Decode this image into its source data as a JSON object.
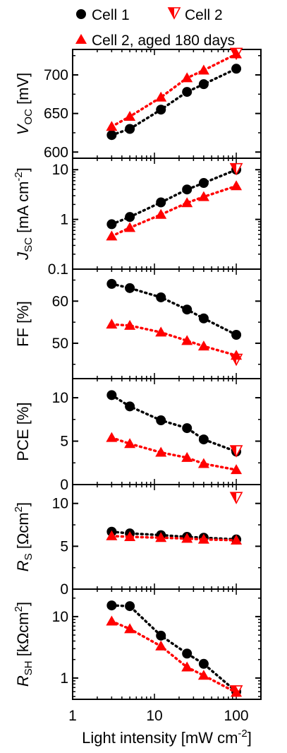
{
  "chart_data": {
    "type": "scatter",
    "x_scale": "log",
    "xlim": [
      1,
      200
    ],
    "xlabel": "Light intensity [mW cm",
    "xlabel_sup": "-2",
    "xlabel_tail": "]",
    "x_ticks": [
      1,
      10,
      100
    ],
    "x_tick_labels": [
      "1",
      "10",
      "100"
    ],
    "legend": [
      {
        "name": "Cell 1",
        "marker": "circle",
        "color": "#000000"
      },
      {
        "name": "Cell 2",
        "marker": "triangle-down-open",
        "color": "#ff0000"
      },
      {
        "name": "Cell 2, aged 180 days",
        "marker": "triangle-up",
        "color": "#ff0000"
      }
    ],
    "panels": [
      {
        "id": "voc",
        "ylabel_main": "V",
        "ylabel_sub": "OC",
        "ylabel_tail": " [mV]",
        "y_scale": "linear",
        "ylim": [
          592,
          733
        ],
        "y_ticks": [
          600,
          650,
          700
        ],
        "y_tick_labels": [
          "600",
          "650",
          "700"
        ],
        "series": [
          {
            "name": "Cell 1",
            "x": [
              3,
              5,
              12,
              25,
              40,
              100
            ],
            "y": [
              622,
              630,
              655,
              678,
              688,
              708
            ]
          },
          {
            "name": "Cell 2",
            "x": [
              100
            ],
            "y": [
              728
            ]
          },
          {
            "name": "Cell 2, aged 180 days",
            "x": [
              3,
              5,
              12,
              25,
              40,
              100
            ],
            "y": [
              633,
              646,
              671,
              696,
              706,
              727
            ]
          }
        ]
      },
      {
        "id": "jsc",
        "ylabel_main": "J",
        "ylabel_sub": "SC",
        "ylabel_tail": " [mA cm",
        "ylabel_sup": "-2",
        "ylabel_end": "]",
        "y_scale": "log",
        "ylim": [
          0.1,
          17
        ],
        "y_ticks": [
          0.1,
          1,
          10
        ],
        "y_tick_labels": [
          "0.1",
          "1",
          "10"
        ],
        "series": [
          {
            "name": "Cell 1",
            "x": [
              3,
              5,
              12,
              25,
              40,
              100
            ],
            "y": [
              0.8,
              1.12,
              2.2,
              4.0,
              5.4,
              10.0
            ]
          },
          {
            "name": "Cell 2",
            "x": [
              100
            ],
            "y": [
              10.5
            ]
          },
          {
            "name": "Cell 2, aged 180 days",
            "x": [
              3,
              5,
              12,
              25,
              40,
              100
            ],
            "y": [
              0.46,
              0.68,
              1.25,
              2.15,
              2.85,
              4.7
            ]
          }
        ]
      },
      {
        "id": "ff",
        "ylabel_main": "FF [%]",
        "y_scale": "linear",
        "ylim": [
          41.6,
          67.6
        ],
        "y_ticks": [
          50,
          60
        ],
        "y_tick_labels": [
          "50",
          "60"
        ],
        "series": [
          {
            "name": "Cell 1",
            "x": [
              3,
              5,
              12,
              25,
              40,
              100
            ],
            "y": [
              64.1,
              63.1,
              60.9,
              58.0,
              55.9,
              52.0
            ]
          },
          {
            "name": "Cell 2",
            "x": [
              100
            ],
            "y": [
              46.2
            ]
          },
          {
            "name": "Cell 2, aged 180 days",
            "x": [
              3,
              5,
              12,
              25,
              40,
              100
            ],
            "y": [
              54.5,
              54.2,
              52.6,
              50.6,
              49.3,
              47.1
            ]
          }
        ]
      },
      {
        "id": "pce",
        "ylabel_main": "PCE [%]",
        "y_scale": "linear",
        "ylim": [
          0,
          12.2
        ],
        "y_ticks": [
          0,
          5,
          10
        ],
        "y_tick_labels": [
          "0",
          "5",
          "10"
        ],
        "series": [
          {
            "name": "Cell 1",
            "x": [
              3,
              5,
              12,
              25,
              40,
              100
            ],
            "y": [
              10.3,
              9.0,
              7.4,
              6.5,
              5.2,
              3.8
            ]
          },
          {
            "name": "Cell 2",
            "x": [
              100
            ],
            "y": [
              3.9
            ]
          },
          {
            "name": "Cell 2, aged 180 days",
            "x": [
              3,
              5,
              12,
              25,
              40,
              100
            ],
            "y": [
              5.4,
              4.7,
              3.7,
              3.1,
              2.4,
              1.7
            ]
          }
        ]
      },
      {
        "id": "rs",
        "ylabel_main": "R",
        "ylabel_sub": "S",
        "ylabel_tail": " [Ωcm",
        "ylabel_sup": "2",
        "ylabel_end": "]",
        "y_scale": "linear",
        "ylim": [
          0,
          12.2
        ],
        "y_ticks": [
          0,
          5,
          10
        ],
        "y_tick_labels": [
          "0",
          "5",
          "10"
        ],
        "series": [
          {
            "name": "Cell 1",
            "x": [
              3,
              5,
              12,
              25,
              40,
              100
            ],
            "y": [
              6.7,
              6.5,
              6.3,
              6.1,
              6.0,
              5.8
            ]
          },
          {
            "name": "Cell 2",
            "x": [
              100
            ],
            "y": [
              10.7
            ]
          },
          {
            "name": "Cell 2, aged 180 days",
            "x": [
              3,
              5,
              12,
              25,
              40,
              100
            ],
            "y": [
              6.2,
              6.1,
              6.0,
              5.9,
              5.8,
              5.7
            ]
          }
        ]
      },
      {
        "id": "rsh",
        "ylabel_main": "R",
        "ylabel_sub": "SH",
        "ylabel_tail": " [kΩcm",
        "ylabel_sup": "2",
        "ylabel_end": "]",
        "y_scale": "log",
        "ylim": [
          0.45,
          28
        ],
        "y_ticks": [
          1,
          10
        ],
        "y_tick_labels": [
          "1",
          "10"
        ],
        "series": [
          {
            "name": "Cell 1",
            "x": [
              3,
              5,
              12,
              25,
              40,
              100
            ],
            "y": [
              15.2,
              14.8,
              4.9,
              2.5,
              1.7,
              0.6
            ]
          },
          {
            "name": "Cell 2",
            "x": [
              100
            ],
            "y": [
              0.62
            ]
          },
          {
            "name": "Cell 2, aged 180 days",
            "x": [
              3,
              5,
              12,
              25,
              40,
              100
            ],
            "y": [
              8.4,
              6.3,
              3.3,
              1.5,
              1.1,
              0.58
            ]
          }
        ]
      }
    ]
  }
}
